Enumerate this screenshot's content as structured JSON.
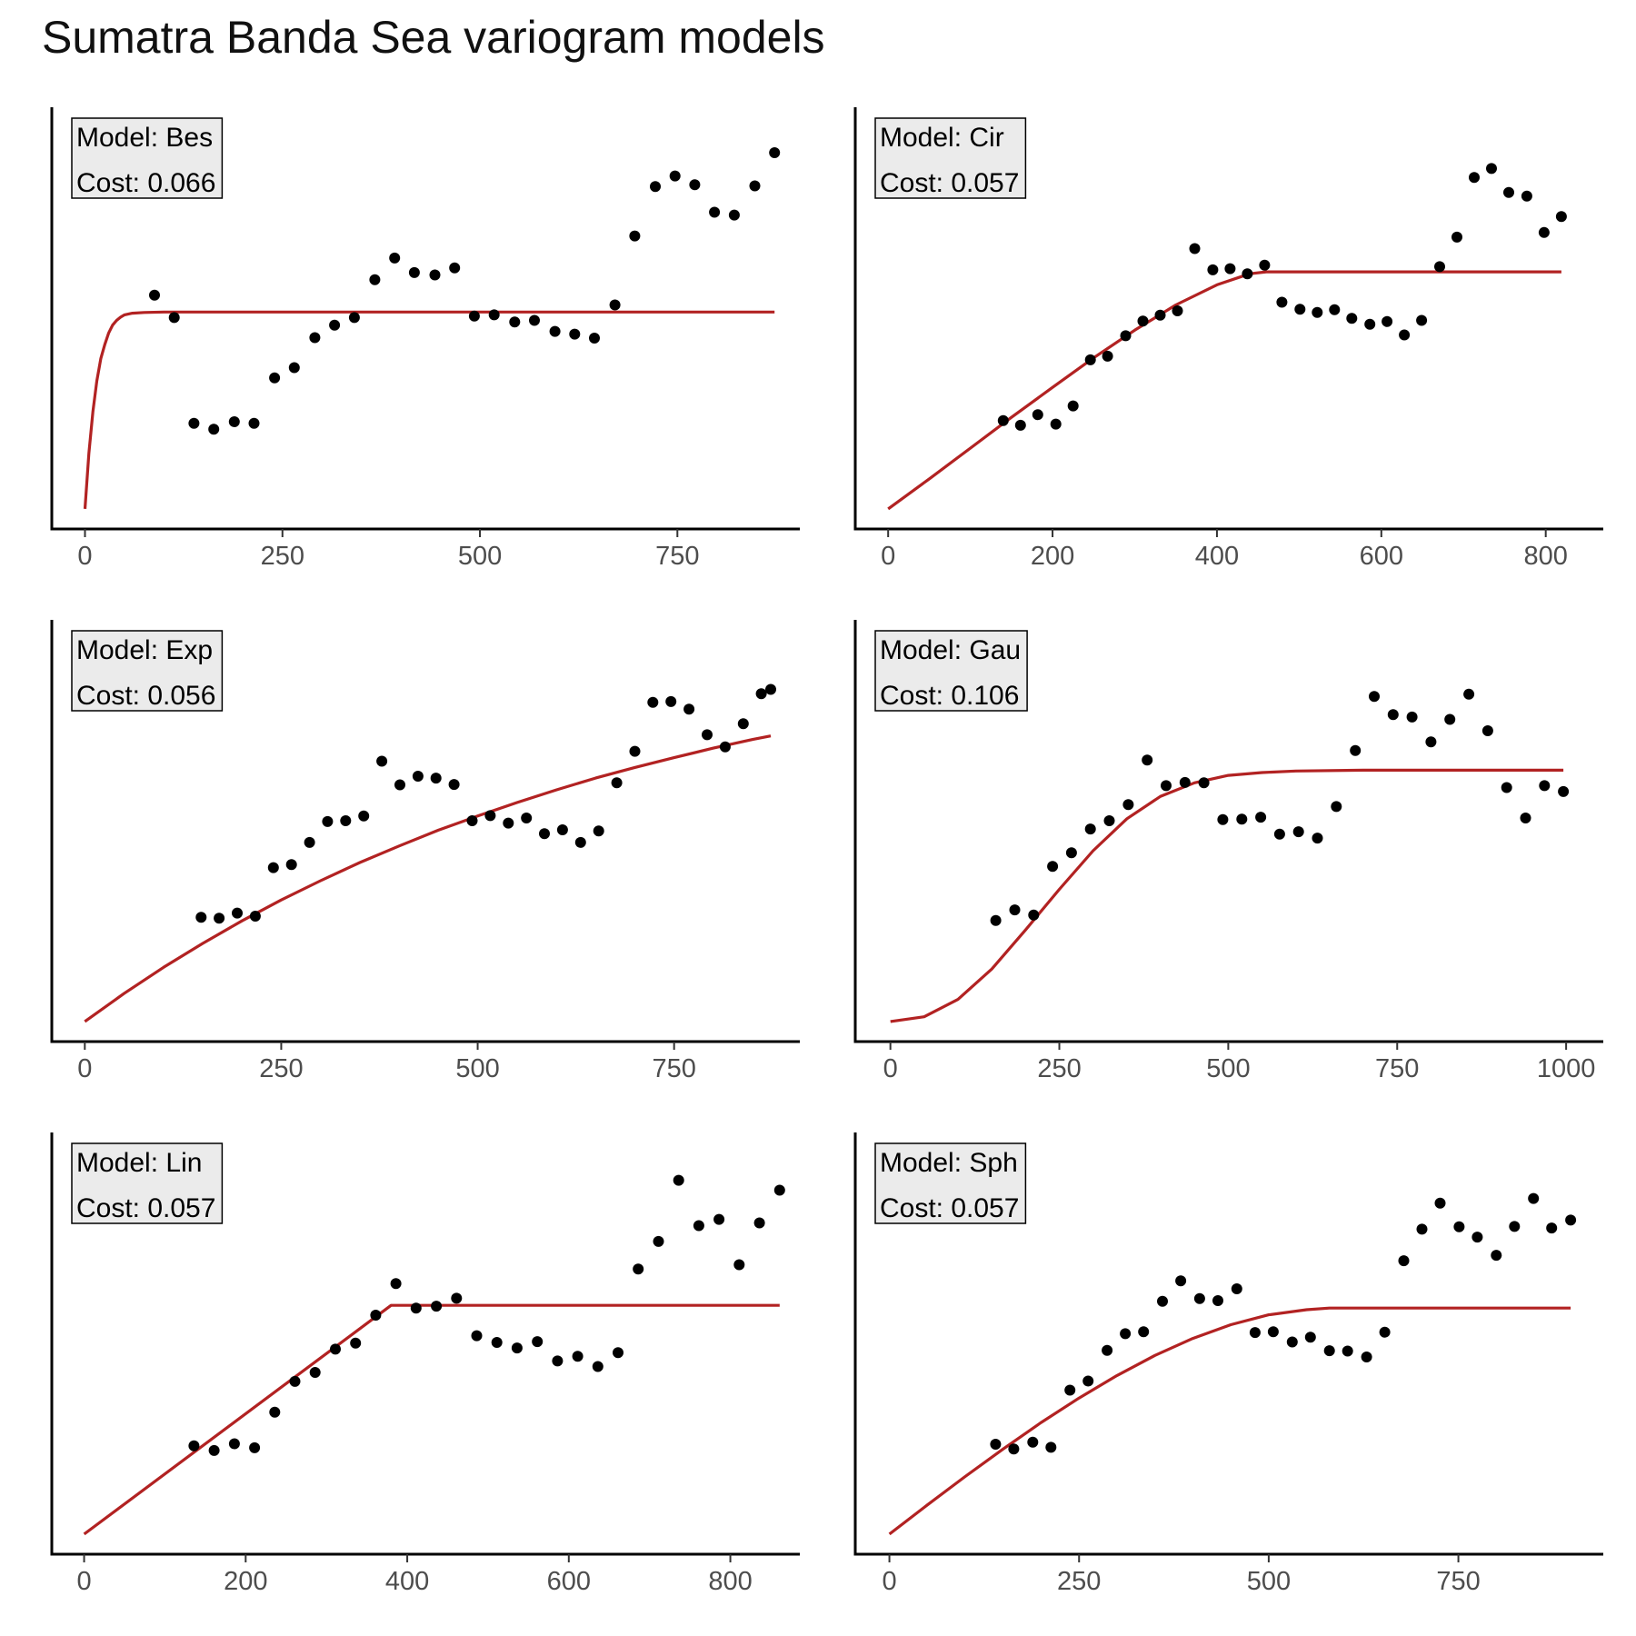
{
  "title": "Sumatra Banda Sea variogram models",
  "colors": {
    "model_line": "#b22222",
    "points": "#000000",
    "label_bg": "#ebebeb"
  },
  "chart_data": [
    {
      "type": "scatter",
      "model_label": "Model: Bes",
      "cost_label": "Cost: 0.066",
      "model": "Bes",
      "cost": 0.066,
      "xlim": [
        -42,
        905
      ],
      "xticks": [
        0,
        250,
        500,
        750
      ],
      "ylim": [
        0,
        1
      ],
      "grid": false,
      "y_tick_labels_shown": false,
      "x": [
        88,
        113,
        138,
        163,
        189,
        214,
        240,
        265,
        291,
        316,
        341,
        367,
        392,
        417,
        443,
        468,
        493,
        518,
        544,
        569,
        595,
        620,
        645,
        671,
        696,
        722,
        747,
        772,
        797,
        822,
        848,
        873
      ],
      "y": [
        0.586,
        0.529,
        0.261,
        0.246,
        0.265,
        0.261,
        0.376,
        0.402,
        0.478,
        0.51,
        0.529,
        0.625,
        0.68,
        0.643,
        0.637,
        0.655,
        0.533,
        0.536,
        0.518,
        0.522,
        0.494,
        0.487,
        0.477,
        0.561,
        0.736,
        0.861,
        0.888,
        0.866,
        0.796,
        0.789,
        0.863,
        0.947
      ],
      "curve": [
        [
          0,
          0.044
        ],
        [
          5,
          0.185
        ],
        [
          10,
          0.29
        ],
        [
          15,
          0.368
        ],
        [
          20,
          0.425
        ],
        [
          25,
          0.46
        ],
        [
          30,
          0.49
        ],
        [
          35,
          0.51
        ],
        [
          40,
          0.522
        ],
        [
          45,
          0.53
        ],
        [
          50,
          0.536
        ],
        [
          60,
          0.54
        ],
        [
          75,
          0.542
        ],
        [
          100,
          0.543
        ],
        [
          873,
          0.543
        ]
      ]
    },
    {
      "type": "scatter",
      "model_label": "Model: Cir",
      "cost_label": "Cost: 0.057",
      "model": "Cir",
      "cost": 0.057,
      "xlim": [
        -40,
        870
      ],
      "xticks": [
        0,
        200,
        400,
        600,
        800
      ],
      "ylim": [
        0,
        1
      ],
      "grid": false,
      "y_tick_labels_shown": false,
      "x": [
        140,
        161,
        182,
        204,
        225,
        246,
        267,
        289,
        310,
        331,
        352,
        373,
        395,
        416,
        437,
        458,
        479,
        501,
        522,
        543,
        564,
        586,
        607,
        628,
        649,
        671,
        692,
        713,
        734,
        755,
        777,
        798,
        819
      ],
      "y": [
        0.268,
        0.256,
        0.283,
        0.259,
        0.305,
        0.422,
        0.431,
        0.483,
        0.52,
        0.535,
        0.546,
        0.704,
        0.65,
        0.653,
        0.64,
        0.662,
        0.568,
        0.55,
        0.542,
        0.549,
        0.527,
        0.512,
        0.519,
        0.485,
        0.522,
        0.658,
        0.733,
        0.884,
        0.907,
        0.846,
        0.837,
        0.745,
        0.785
      ],
      "curve": [
        [
          0,
          0.044
        ],
        [
          50,
          0.12
        ],
        [
          100,
          0.198
        ],
        [
          150,
          0.276
        ],
        [
          200,
          0.352
        ],
        [
          250,
          0.427
        ],
        [
          300,
          0.497
        ],
        [
          350,
          0.561
        ],
        [
          400,
          0.612
        ],
        [
          440,
          0.64
        ],
        [
          460,
          0.645
        ],
        [
          819,
          0.645
        ]
      ]
    },
    {
      "type": "scatter",
      "model_label": "Model: Exp",
      "cost_label": "Cost: 0.056",
      "model": "Exp",
      "cost": 0.056,
      "xlim": [
        -42,
        910
      ],
      "xticks": [
        0,
        250,
        500,
        750
      ],
      "ylim": [
        0,
        1
      ],
      "grid": false,
      "y_tick_labels_shown": false,
      "x": [
        148,
        171,
        194,
        217,
        240,
        263,
        286,
        309,
        332,
        355,
        378,
        401,
        424,
        447,
        470,
        493,
        516,
        539,
        562,
        585,
        608,
        631,
        654,
        677,
        700,
        723,
        746,
        769,
        792,
        815,
        838,
        861,
        873
      ],
      "y": [
        0.308,
        0.306,
        0.319,
        0.311,
        0.434,
        0.442,
        0.498,
        0.551,
        0.553,
        0.565,
        0.704,
        0.644,
        0.666,
        0.661,
        0.645,
        0.553,
        0.566,
        0.547,
        0.56,
        0.52,
        0.53,
        0.498,
        0.527,
        0.649,
        0.729,
        0.853,
        0.855,
        0.836,
        0.771,
        0.74,
        0.799,
        0.875,
        0.886
      ],
      "curve": [
        [
          0,
          0.044
        ],
        [
          50,
          0.115
        ],
        [
          100,
          0.181
        ],
        [
          150,
          0.242
        ],
        [
          200,
          0.299
        ],
        [
          250,
          0.352
        ],
        [
          300,
          0.401
        ],
        [
          350,
          0.447
        ],
        [
          400,
          0.489
        ],
        [
          450,
          0.529
        ],
        [
          500,
          0.565
        ],
        [
          550,
          0.599
        ],
        [
          600,
          0.631
        ],
        [
          650,
          0.661
        ],
        [
          700,
          0.688
        ],
        [
          750,
          0.713
        ],
        [
          800,
          0.737
        ],
        [
          850,
          0.759
        ],
        [
          873,
          0.768
        ]
      ]
    },
    {
      "type": "scatter",
      "model_label": "Model: Gau",
      "cost_label": "Cost: 0.106",
      "model": "Gau",
      "cost": 0.106,
      "xlim": [
        -52,
        1055
      ],
      "xticks": [
        0,
        250,
        500,
        750,
        1000
      ],
      "ylim": [
        0,
        1
      ],
      "grid": false,
      "y_tick_labels_shown": false,
      "x": [
        156,
        184,
        212,
        240,
        268,
        296,
        324,
        352,
        380,
        408,
        436,
        464,
        492,
        520,
        548,
        576,
        604,
        632,
        660,
        688,
        716,
        744,
        772,
        800,
        828,
        856,
        884,
        912,
        940,
        968,
        996
      ],
      "y": [
        0.3,
        0.327,
        0.314,
        0.437,
        0.472,
        0.532,
        0.553,
        0.594,
        0.707,
        0.642,
        0.65,
        0.649,
        0.556,
        0.557,
        0.562,
        0.519,
        0.525,
        0.509,
        0.589,
        0.731,
        0.868,
        0.822,
        0.816,
        0.753,
        0.81,
        0.874,
        0.781,
        0.637,
        0.56,
        0.642,
        0.627
      ],
      "curve": [
        [
          0,
          0.044
        ],
        [
          50,
          0.056
        ],
        [
          100,
          0.1
        ],
        [
          150,
          0.177
        ],
        [
          200,
          0.276
        ],
        [
          250,
          0.379
        ],
        [
          300,
          0.477
        ],
        [
          350,
          0.558
        ],
        [
          400,
          0.615
        ],
        [
          450,
          0.649
        ],
        [
          500,
          0.668
        ],
        [
          550,
          0.675
        ],
        [
          600,
          0.679
        ],
        [
          700,
          0.681
        ],
        [
          996,
          0.681
        ]
      ]
    },
    {
      "type": "scatter",
      "model_label": "Model: Lin",
      "cost_label": "Cost: 0.057",
      "model": "Lin",
      "cost": 0.057,
      "xlim": [
        -40,
        886
      ],
      "xticks": [
        0,
        200,
        400,
        600,
        800
      ],
      "ylim": [
        0,
        1
      ],
      "grid": false,
      "y_tick_labels_shown": false,
      "x": [
        136,
        161,
        186,
        211,
        236,
        261,
        286,
        311,
        336,
        361,
        386,
        411,
        436,
        461,
        486,
        511,
        536,
        561,
        586,
        611,
        636,
        661,
        686,
        711,
        736,
        761,
        786,
        811,
        836,
        861
      ],
      "y": [
        0.268,
        0.256,
        0.273,
        0.263,
        0.353,
        0.431,
        0.454,
        0.513,
        0.528,
        0.599,
        0.679,
        0.617,
        0.622,
        0.642,
        0.547,
        0.53,
        0.516,
        0.532,
        0.483,
        0.495,
        0.469,
        0.504,
        0.716,
        0.786,
        0.941,
        0.826,
        0.842,
        0.727,
        0.833,
        0.916
      ],
      "curve": [
        [
          0,
          0.044
        ],
        [
          380,
          0.624
        ],
        [
          861,
          0.624
        ]
      ]
    },
    {
      "type": "scatter",
      "model_label": "Model: Sph",
      "cost_label": "Cost: 0.057",
      "model": "Sph",
      "cost": 0.057,
      "xlim": [
        -45,
        941
      ],
      "xticks": [
        0,
        250,
        500,
        750
      ],
      "ylim": [
        0,
        1
      ],
      "grid": false,
      "y_tick_labels_shown": false,
      "x": [
        140,
        164,
        189,
        213,
        238,
        262,
        287,
        311,
        335,
        360,
        384,
        409,
        433,
        458,
        482,
        506,
        531,
        555,
        580,
        604,
        629,
        653,
        678,
        702,
        726,
        751,
        775,
        800,
        824,
        849,
        873,
        898
      ],
      "y": [
        0.272,
        0.26,
        0.277,
        0.264,
        0.409,
        0.432,
        0.51,
        0.552,
        0.557,
        0.634,
        0.686,
        0.641,
        0.636,
        0.666,
        0.555,
        0.557,
        0.531,
        0.543,
        0.509,
        0.508,
        0.493,
        0.556,
        0.737,
        0.817,
        0.883,
        0.823,
        0.797,
        0.751,
        0.824,
        0.895,
        0.82,
        0.84
      ],
      "curve": [
        [
          0,
          0.044
        ],
        [
          50,
          0.118
        ],
        [
          100,
          0.19
        ],
        [
          150,
          0.26
        ],
        [
          200,
          0.327
        ],
        [
          250,
          0.389
        ],
        [
          300,
          0.446
        ],
        [
          350,
          0.497
        ],
        [
          400,
          0.54
        ],
        [
          450,
          0.575
        ],
        [
          500,
          0.6
        ],
        [
          550,
          0.613
        ],
        [
          580,
          0.617
        ],
        [
          898,
          0.617
        ]
      ]
    }
  ]
}
